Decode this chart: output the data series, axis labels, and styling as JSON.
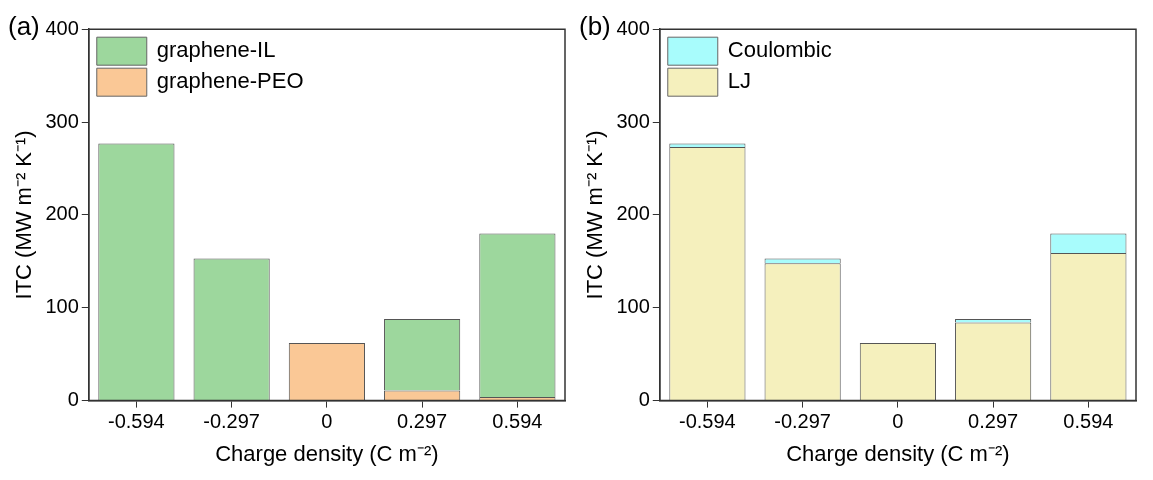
{
  "chart_data": [
    {
      "type": "bar",
      "title": "(a)",
      "xlabel": "Charge density (C m⁻²)",
      "ylabel": "ITC (MW m⁻² K⁻¹)",
      "categories": [
        "-0.594",
        "-0.297",
        "0",
        "0.297",
        "0.594"
      ],
      "stacked": true,
      "ylim": [
        0,
        400
      ],
      "yticks": [
        0,
        100,
        200,
        300,
        400
      ],
      "grid": false,
      "legend": "top left",
      "series": [
        {
          "name": "graphene-PEO",
          "color": "#fac896",
          "values": [
            0,
            0,
            62,
            11,
            4
          ]
        },
        {
          "name": "graphene-IL",
          "color": "#9dd79d",
          "values": [
            277,
            153,
            0,
            77,
            176
          ]
        }
      ]
    },
    {
      "type": "bar",
      "title": "(b)",
      "xlabel": "Charge density (C m⁻²)",
      "ylabel": "ITC (MW m⁻² K⁻¹)",
      "categories": [
        "-0.594",
        "-0.297",
        "0",
        "0.297",
        "0.594"
      ],
      "stacked": true,
      "ylim": [
        0,
        400
      ],
      "yticks": [
        0,
        100,
        200,
        300,
        400
      ],
      "grid": false,
      "legend": "top left",
      "series": [
        {
          "name": "LJ",
          "color": "#f5f0bd",
          "values": [
            273,
            148,
            62,
            84,
            159
          ]
        },
        {
          "name": "Coulombic",
          "color": "#a8fcfc",
          "values": [
            4,
            5,
            0,
            4,
            21
          ]
        }
      ]
    }
  ]
}
